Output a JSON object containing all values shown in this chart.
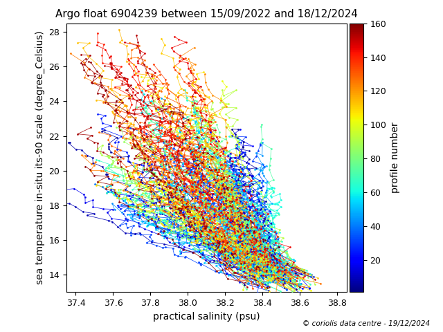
{
  "title": "Argo float 6904239 between 15/09/2022 and 18/12/2024",
  "xlabel": "practical salinity (psu)",
  "ylabel": "sea temperature in-situ its-90 scale (degree_Celsius)",
  "colorbar_label": "profile number",
  "xlim": [
    37.35,
    38.85
  ],
  "ylim": [
    13.0,
    28.5
  ],
  "xticks": [
    37.4,
    37.6,
    37.8,
    38.0,
    38.2,
    38.4,
    38.6,
    38.8
  ],
  "yticks": [
    14,
    16,
    18,
    20,
    22,
    24,
    26,
    28
  ],
  "cbar_ticks": [
    20,
    40,
    60,
    80,
    100,
    120,
    140,
    160
  ],
  "n_profiles": 160,
  "copyright": "© coriolis data centre - 19/12/2024",
  "background_color": "white",
  "title_fontsize": 11,
  "label_fontsize": 10,
  "tick_fontsize": 9
}
